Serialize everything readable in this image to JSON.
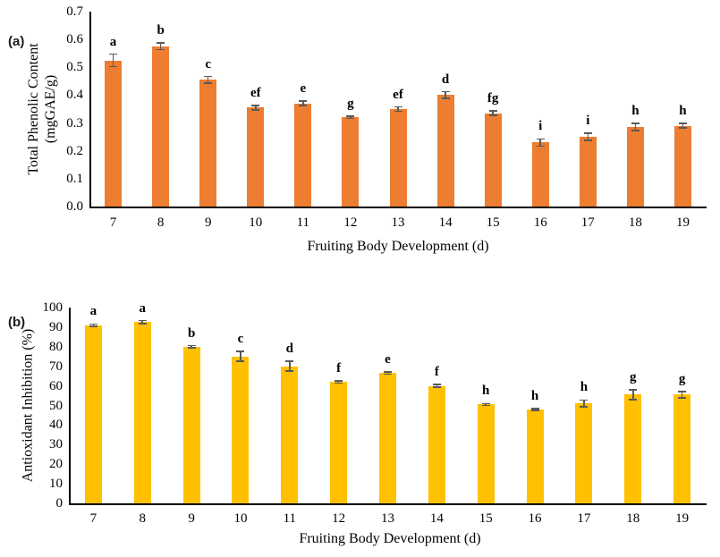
{
  "figure_title": "",
  "chart_data": [
    {
      "type": "bar",
      "panel_label": "(a)",
      "ylabel": "Total Phenolic Content (mgGAE/g)",
      "ylabel_lines": [
        "Total Phenolic Content",
        "(mgGAE/g)"
      ],
      "xlabel": "Fruiting Body Development (d)",
      "categories": [
        "7",
        "8",
        "9",
        "10",
        "11",
        "12",
        "13",
        "14",
        "15",
        "16",
        "17",
        "18",
        "19"
      ],
      "values": [
        0.525,
        0.575,
        0.455,
        0.355,
        0.37,
        0.32,
        0.35,
        0.4,
        0.335,
        0.23,
        0.25,
        0.285,
        0.29
      ],
      "errors": [
        0.022,
        0.012,
        0.012,
        0.008,
        0.008,
        0.004,
        0.008,
        0.012,
        0.008,
        0.013,
        0.013,
        0.013,
        0.008
      ],
      "sig_letters": [
        "a",
        "b",
        "c",
        "ef",
        "e",
        "g",
        "ef",
        "d",
        "fg",
        "i",
        "i",
        "h",
        "h"
      ],
      "ylim": [
        0,
        0.7
      ],
      "yticks": [
        "0.0",
        "0.1",
        "0.2",
        "0.3",
        "0.4",
        "0.5",
        "0.6",
        "0.7"
      ],
      "bar_color": "#ED7D31",
      "error_color": "#595959",
      "grid": false,
      "legend_position": "none"
    },
    {
      "type": "bar",
      "panel_label": "(b)",
      "ylabel": "Antioxidant Inhibition (%)",
      "ylabel_lines": [
        "Antioxidant Inhibition (%)"
      ],
      "xlabel": "Fruiting Body Development (d)",
      "categories": [
        "7",
        "8",
        "9",
        "10",
        "11",
        "12",
        "13",
        "14",
        "15",
        "16",
        "17",
        "18",
        "19"
      ],
      "values": [
        91,
        92.5,
        80,
        75,
        70,
        62,
        66.5,
        60,
        50.5,
        48,
        51,
        55.5,
        55.5
      ],
      "errors": [
        0.6,
        0.8,
        0.5,
        2.5,
        2.5,
        0.6,
        0.6,
        0.6,
        0.5,
        0.5,
        1.8,
        2.5,
        1.5
      ],
      "sig_letters": [
        "a",
        "a",
        "b",
        "c",
        "d",
        "f",
        "e",
        "f",
        "h",
        "h",
        "h",
        "g",
        "g"
      ],
      "ylim": [
        0,
        100
      ],
      "yticks": [
        "0",
        "10",
        "20",
        "30",
        "40",
        "50",
        "60",
        "70",
        "80",
        "90",
        "100"
      ],
      "bar_color": "#FFC000",
      "error_color": "#595959",
      "grid": false,
      "legend_position": "none"
    }
  ]
}
